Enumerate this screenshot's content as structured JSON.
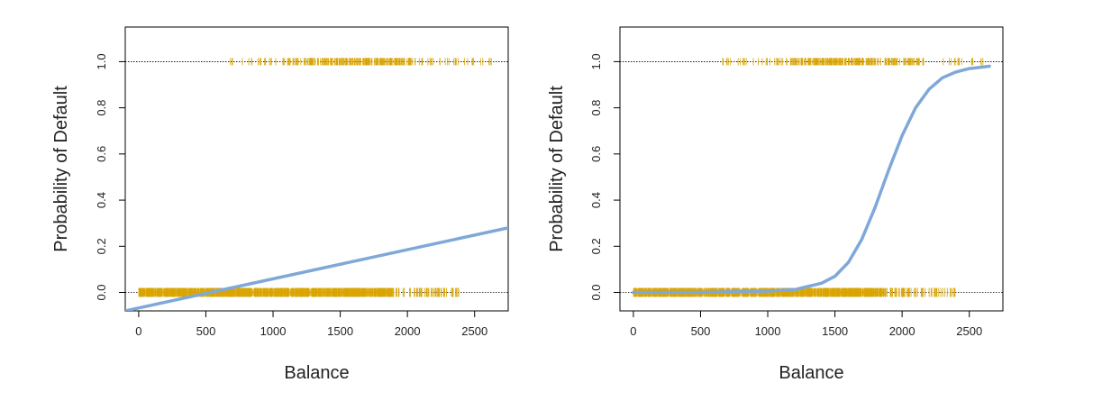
{
  "chart_data": [
    {
      "type": "scatter",
      "fit": "linear",
      "title": "",
      "xlabel": "Balance",
      "ylabel": "Probability of Default",
      "xlim": [
        -100,
        2750
      ],
      "ylim": [
        -0.08,
        1.15
      ],
      "xticks": [
        0,
        500,
        1000,
        1500,
        2000,
        2500
      ],
      "yticks": [
        0.0,
        0.2,
        0.4,
        0.6,
        0.8,
        1.0
      ],
      "xtick_labels": [
        "0",
        "500",
        "1000",
        "1500",
        "2000",
        "2500"
      ],
      "ytick_labels": [
        "0.0",
        "0.2",
        "0.4",
        "0.6",
        "0.8",
        "1.0"
      ],
      "reference_lines_y": [
        0,
        1
      ],
      "colors": {
        "points": "#d9a400",
        "fit": "#7fa8d8"
      },
      "points_default": {
        "y": 1,
        "x_range": [
          650,
          2650
        ]
      },
      "points_nondefault": {
        "y": 0,
        "x_range": [
          0,
          2400
        ]
      },
      "fit_line": {
        "x": [
          -100,
          2750
        ],
        "y": [
          -0.08,
          0.28
        ]
      }
    },
    {
      "type": "scatter",
      "fit": "logistic",
      "title": "",
      "xlabel": "Balance",
      "ylabel": "Probability of Default",
      "xlim": [
        -100,
        2750
      ],
      "ylim": [
        -0.08,
        1.15
      ],
      "xticks": [
        0,
        500,
        1000,
        1500,
        2000,
        2500
      ],
      "yticks": [
        0.0,
        0.2,
        0.4,
        0.6,
        0.8,
        1.0
      ],
      "xtick_labels": [
        "0",
        "500",
        "1000",
        "1500",
        "2000",
        "2500"
      ],
      "ytick_labels": [
        "0.0",
        "0.2",
        "0.4",
        "0.6",
        "0.8",
        "1.0"
      ],
      "reference_lines_y": [
        0,
        1
      ],
      "colors": {
        "points": "#d9a400",
        "fit": "#7fa8d8"
      },
      "points_default": {
        "y": 1,
        "x_range": [
          650,
          2650
        ]
      },
      "points_nondefault": {
        "y": 0,
        "x_range": [
          0,
          2400
        ]
      },
      "fit_curve": {
        "x": [
          0,
          500,
          1000,
          1200,
          1400,
          1500,
          1600,
          1700,
          1800,
          1900,
          2000,
          2100,
          2200,
          2300,
          2400,
          2500,
          2650
        ],
        "y": [
          0.0,
          0.0,
          0.006,
          0.012,
          0.04,
          0.07,
          0.13,
          0.23,
          0.37,
          0.53,
          0.68,
          0.8,
          0.88,
          0.93,
          0.955,
          0.97,
          0.98
        ]
      }
    }
  ]
}
